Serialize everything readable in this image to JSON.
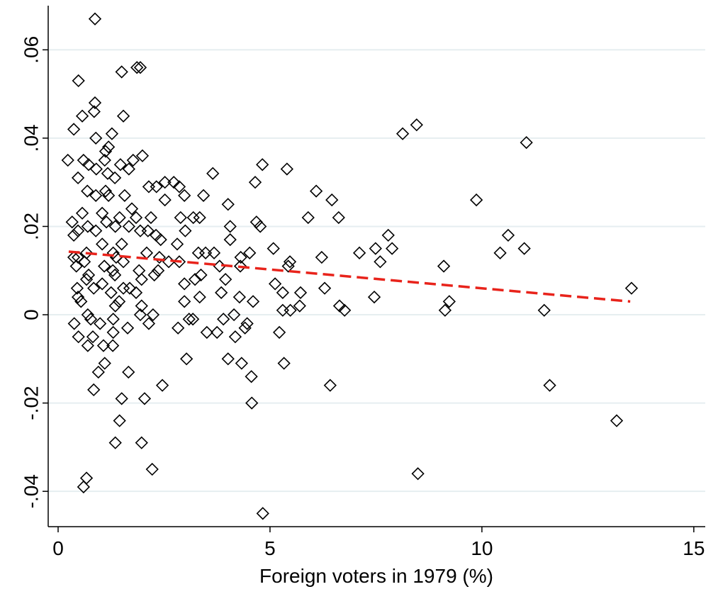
{
  "chart_data": {
    "type": "scatter",
    "xlabel": "Foreign voters in 1979 (%)",
    "xlim": [
      -0.234,
      15.27
    ],
    "ylim": [
      -0.048,
      0.07
    ],
    "xticks": [
      0,
      5,
      10,
      15
    ],
    "yticks": [
      {
        "value": -0.04,
        "label": "-.04"
      },
      {
        "value": -0.02,
        "label": "-.02"
      },
      0,
      {
        "value": 0.02,
        "label": ".02"
      },
      {
        "value": 0.04,
        "label": ".04"
      },
      {
        "value": 0.06,
        "label": ".06"
      }
    ],
    "grid": true,
    "series": [
      {
        "type": "scatter",
        "marker": "diamond",
        "color": "#000000",
        "x": [
          0.87,
          0.48,
          1.5,
          1.86,
          1.94,
          0.87,
          0.85,
          0.57,
          1.54,
          0.37,
          1.27,
          0.89,
          1.19,
          1.12,
          0.23,
          0.6,
          1.1,
          1.99,
          1.77,
          0.72,
          1.47,
          0.9,
          1.67,
          1.17,
          0.47,
          1.34,
          0.69,
          1.12,
          1.57,
          0.89,
          1.19,
          2.14,
          2.32,
          2.52,
          2.73,
          2.86,
          2.98,
          2.52,
          3.65,
          3.43,
          4.01,
          4.65,
          4.82,
          5.4,
          6.09,
          6.46,
          8.13,
          8.46,
          11.05,
          9.87,
          1.74,
          1.04,
          0.57,
          1.84,
          1.45,
          2.19,
          2.89,
          3.19,
          3.34,
          5.9,
          6.62,
          0.33,
          1.14,
          4.68,
          1.67,
          1.35,
          0.7,
          4.77,
          4.06,
          0.47,
          0.89,
          1.94,
          2.12,
          3.0,
          7.79,
          10.62,
          0.37,
          2.31,
          2.42,
          4.06,
          1.04,
          1.5,
          2.81,
          0.37,
          5.08,
          7.49,
          7.88,
          11.0,
          0.67,
          1.3,
          2.09,
          3.31,
          3.48,
          3.68,
          4.52,
          7.11,
          10.43,
          0.47,
          1.37,
          2.39,
          4.31,
          6.22,
          0.62,
          1.54,
          2.61,
          2.86,
          5.47,
          7.6,
          0.43,
          1.09,
          3.81,
          4.3,
          5.43,
          9.1,
          1.29,
          1.91,
          2.36,
          3.37,
          0.72,
          1.34,
          1.97,
          2.27,
          3.95,
          3.23,
          0.67,
          5.12,
          2.98,
          1.04,
          0.45,
          0.84,
          1.54,
          1.69,
          6.29,
          13.53,
          3.85,
          5.3,
          5.72,
          1.25,
          1.84,
          0.47,
          3.34,
          4.28,
          7.46,
          0.54,
          1.44,
          2.98,
          4.6,
          9.23,
          1.35,
          1.97,
          5.7,
          6.64,
          5.48,
          5.3,
          6.76,
          9.13,
          11.47,
          0.7,
          1.94,
          2.24,
          4.15,
          1.3,
          3.09,
          3.18,
          3.9,
          0.77,
          0.99,
          0.38,
          2.14,
          4.46,
          4.41,
          2.83,
          1.64,
          1.3,
          3.51,
          3.75,
          5.22,
          0.48,
          0.82,
          4.18,
          1.07,
          0.7,
          1.29,
          3.03,
          4.01,
          1.1,
          4.33,
          5.33,
          0.95,
          1.66,
          4.56,
          2.46,
          6.42,
          11.6,
          0.84,
          1.5,
          2.04,
          4.57,
          1.45,
          13.18,
          1.35,
          1.97,
          2.22,
          8.49,
          0.67,
          0.6,
          4.83
        ],
        "values": [
          0.067,
          0.053,
          0.055,
          0.056,
          0.056,
          0.048,
          0.046,
          0.045,
          0.045,
          0.042,
          0.041,
          0.04,
          0.038,
          0.037,
          0.035,
          0.035,
          0.035,
          0.036,
          0.035,
          0.034,
          0.034,
          0.033,
          0.033,
          0.032,
          0.031,
          0.031,
          0.028,
          0.028,
          0.027,
          0.027,
          0.027,
          0.029,
          0.029,
          0.03,
          0.03,
          0.029,
          0.027,
          0.026,
          0.032,
          0.027,
          0.025,
          0.03,
          0.034,
          0.033,
          0.028,
          0.026,
          0.041,
          0.043,
          0.039,
          0.026,
          0.024,
          0.023,
          0.023,
          0.022,
          0.022,
          0.022,
          0.022,
          0.022,
          0.022,
          0.022,
          0.022,
          0.021,
          0.021,
          0.021,
          0.02,
          0.02,
          0.02,
          0.02,
          0.02,
          0.019,
          0.019,
          0.019,
          0.019,
          0.019,
          0.018,
          0.018,
          0.018,
          0.018,
          0.017,
          0.017,
          0.016,
          0.016,
          0.016,
          0.013,
          0.015,
          0.015,
          0.015,
          0.015,
          0.014,
          0.014,
          0.014,
          0.014,
          0.014,
          0.014,
          0.014,
          0.014,
          0.014,
          0.013,
          0.013,
          0.013,
          0.013,
          0.013,
          0.012,
          0.012,
          0.012,
          0.012,
          0.012,
          0.012,
          0.011,
          0.011,
          0.011,
          0.011,
          0.011,
          0.011,
          0.01,
          0.01,
          0.01,
          0.009,
          0.009,
          0.009,
          0.008,
          0.009,
          0.008,
          0.008,
          0.008,
          0.007,
          0.007,
          0.007,
          0.006,
          0.006,
          0.006,
          0.006,
          0.006,
          0.006,
          0.005,
          0.005,
          0.005,
          0.005,
          0.005,
          0.004,
          0.004,
          0.004,
          0.004,
          0.003,
          0.003,
          0.003,
          0.003,
          0.003,
          0.002,
          0.002,
          0.002,
          0.002,
          0.001,
          0.001,
          0.001,
          0.001,
          0.001,
          0,
          0,
          0,
          0,
          -0.001,
          -0.001,
          -0.001,
          -0.001,
          -0.001,
          -0.002,
          -0.002,
          -0.002,
          -0.002,
          -0.003,
          -0.003,
          -0.003,
          -0.004,
          -0.004,
          -0.004,
          -0.004,
          -0.005,
          -0.005,
          -0.005,
          -0.007,
          -0.007,
          -0.007,
          -0.01,
          -0.01,
          -0.011,
          -0.011,
          -0.011,
          -0.013,
          -0.013,
          -0.014,
          -0.016,
          -0.016,
          -0.016,
          -0.017,
          -0.019,
          -0.019,
          -0.02,
          -0.024,
          -0.024,
          -0.029,
          -0.029,
          -0.035,
          -0.036,
          -0.037,
          -0.039,
          -0.045
        ]
      },
      {
        "type": "line",
        "style": "dashed",
        "color": "#e8231b",
        "x": [
          0.25,
          13.5
        ],
        "values": [
          0.0143,
          0.003
        ]
      }
    ]
  }
}
